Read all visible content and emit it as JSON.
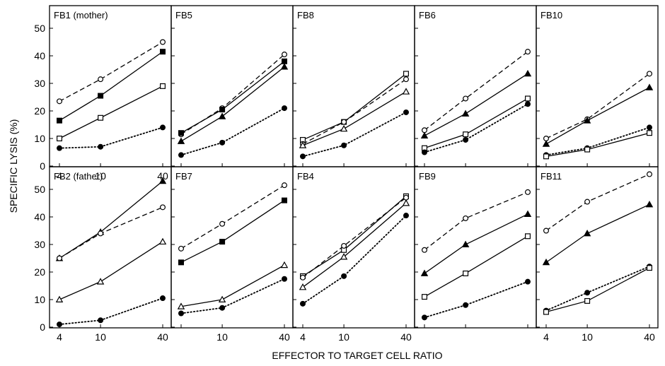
{
  "figure": {
    "ylabel": "SPECIFIC LYSIS (%)",
    "xlabel": "EFFECTOR TO TARGET CELL RATIO"
  },
  "chart_data": [
    {
      "type": "line",
      "title": "FB1 (mother)",
      "x": [
        4,
        10,
        40
      ],
      "xscale": "log",
      "ylim": [
        0,
        55
      ],
      "yticks": [
        0,
        10,
        20,
        30,
        40,
        50
      ],
      "xticks": [
        "4",
        "10",
        "40"
      ],
      "series": [
        {
          "marker": "open-circle",
          "style": "dashed",
          "values": [
            23.5,
            31.5,
            45
          ]
        },
        {
          "marker": "filled-square",
          "style": "solid",
          "values": [
            16.5,
            25.5,
            41.5
          ]
        },
        {
          "marker": "open-square",
          "style": "solid",
          "values": [
            10,
            17.5,
            29
          ]
        },
        {
          "marker": "filled-circle",
          "style": "dotted",
          "values": [
            6.5,
            7,
            14
          ]
        }
      ]
    },
    {
      "type": "line",
      "title": "FB5",
      "x": [
        4,
        10,
        40
      ],
      "xscale": "log",
      "ylim": [
        0,
        55
      ],
      "yticks": [],
      "xticks": [],
      "series": [
        {
          "marker": "open-circle",
          "style": "dashed",
          "values": [
            11.5,
            21,
            40.5
          ]
        },
        {
          "marker": "filled-square",
          "style": "solid",
          "values": [
            12,
            20.5,
            38
          ]
        },
        {
          "marker": "filled-triangle",
          "style": "solid",
          "values": [
            9,
            18,
            36
          ]
        },
        {
          "marker": "filled-circle",
          "style": "dotted",
          "values": [
            4,
            8.5,
            21
          ]
        }
      ]
    },
    {
      "type": "line",
      "title": "FB8",
      "x": [
        4,
        10,
        40
      ],
      "xscale": "log",
      "ylim": [
        0,
        55
      ],
      "yticks": [],
      "xticks": [],
      "series": [
        {
          "marker": "open-square",
          "style": "solid",
          "values": [
            9.5,
            16,
            33.5
          ]
        },
        {
          "marker": "open-circle",
          "style": "dashed",
          "values": [
            8,
            16,
            31.5
          ]
        },
        {
          "marker": "open-triangle",
          "style": "solid",
          "values": [
            7.5,
            13.5,
            27
          ]
        },
        {
          "marker": "filled-circle",
          "style": "dotted",
          "values": [
            3.5,
            7.5,
            19.5
          ]
        }
      ]
    },
    {
      "type": "line",
      "title": "FB6",
      "x": [
        4,
        10,
        40
      ],
      "xscale": "log",
      "ylim": [
        0,
        55
      ],
      "yticks": [],
      "xticks": [],
      "series": [
        {
          "marker": "open-circle",
          "style": "dashed",
          "values": [
            13,
            24.5,
            41.5
          ]
        },
        {
          "marker": "filled-triangle",
          "style": "solid",
          "values": [
            11,
            19,
            33.5
          ]
        },
        {
          "marker": "open-square",
          "style": "solid",
          "values": [
            6.5,
            11.5,
            24.5
          ]
        },
        {
          "marker": "filled-circle",
          "style": "dotted",
          "values": [
            5,
            9.5,
            22.5
          ]
        }
      ]
    },
    {
      "type": "line",
      "title": "FB10",
      "x": [
        4,
        10,
        40
      ],
      "xscale": "log",
      "ylim": [
        0,
        55
      ],
      "yticks": [],
      "xticks": [],
      "series": [
        {
          "marker": "open-circle",
          "style": "dashed",
          "values": [
            10,
            17,
            33.5
          ]
        },
        {
          "marker": "filled-triangle",
          "style": "solid",
          "values": [
            8,
            16.5,
            28.5
          ]
        },
        {
          "marker": "filled-circle",
          "style": "dotted",
          "values": [
            4,
            6.5,
            14
          ]
        },
        {
          "marker": "open-square",
          "style": "solid",
          "values": [
            3.5,
            6,
            12
          ]
        }
      ]
    },
    {
      "type": "line",
      "title": "FB2 (father)",
      "x": [
        4,
        10,
        40
      ],
      "xscale": "log",
      "ylim": [
        0,
        55
      ],
      "yticks": [
        0,
        10,
        20,
        30,
        40,
        50
      ],
      "xticks": [
        "4",
        "10",
        "40"
      ],
      "series": [
        {
          "marker": "filled-triangle",
          "style": "solid",
          "values": [
            25,
            34.5,
            53
          ]
        },
        {
          "marker": "open-circle",
          "style": "dashed",
          "values": [
            25,
            34,
            43.5
          ]
        },
        {
          "marker": "open-triangle",
          "style": "solid",
          "values": [
            10,
            16.5,
            31
          ]
        },
        {
          "marker": "filled-circle",
          "style": "dotted",
          "values": [
            1,
            2.5,
            10.5
          ]
        }
      ]
    },
    {
      "type": "line",
      "title": "FB7",
      "x": [
        4,
        10,
        40
      ],
      "xscale": "log",
      "ylim": [
        0,
        55
      ],
      "yticks": [],
      "xticks": [
        "10",
        "40"
      ],
      "series": [
        {
          "marker": "open-circle",
          "style": "dashed",
          "values": [
            28.5,
            37.5,
            51.5
          ]
        },
        {
          "marker": "filled-square",
          "style": "solid",
          "values": [
            23.5,
            31,
            46
          ]
        },
        {
          "marker": "open-triangle",
          "style": "solid",
          "values": [
            7.5,
            10,
            22.5
          ]
        },
        {
          "marker": "filled-circle",
          "style": "dotted",
          "values": [
            5,
            7,
            17.5
          ]
        }
      ]
    },
    {
      "type": "line",
      "title": "FB4",
      "x": [
        4,
        10,
        40
      ],
      "xscale": "log",
      "ylim": [
        0,
        55
      ],
      "yticks": [],
      "xticks": [
        "4",
        "10",
        "40"
      ],
      "series": [
        {
          "marker": "open-square",
          "style": "solid",
          "values": [
            18.5,
            28,
            47.5
          ]
        },
        {
          "marker": "open-circle",
          "style": "dashed",
          "values": [
            18,
            29.5,
            47
          ]
        },
        {
          "marker": "open-triangle",
          "style": "solid",
          "values": [
            14.5,
            25.5,
            45
          ]
        },
        {
          "marker": "filled-circle",
          "style": "dotted",
          "values": [
            8.5,
            18.5,
            40.5
          ]
        }
      ]
    },
    {
      "type": "line",
      "title": "FB9",
      "x": [
        4,
        10,
        40
      ],
      "xscale": "log",
      "ylim": [
        0,
        55
      ],
      "yticks": [],
      "xticks": [],
      "series": [
        {
          "marker": "open-circle",
          "style": "dashed",
          "values": [
            28,
            39.5,
            49
          ]
        },
        {
          "marker": "filled-triangle",
          "style": "solid",
          "values": [
            19.5,
            30,
            41
          ]
        },
        {
          "marker": "open-square",
          "style": "solid",
          "values": [
            11,
            19.5,
            33
          ]
        },
        {
          "marker": "filled-circle",
          "style": "dotted",
          "values": [
            3.5,
            8,
            16.5
          ]
        }
      ]
    },
    {
      "type": "line",
      "title": "FB11",
      "x": [
        4,
        10,
        40
      ],
      "xscale": "log",
      "ylim": [
        0,
        55
      ],
      "yticks": [],
      "xticks": [
        "4",
        "10",
        "40"
      ],
      "series": [
        {
          "marker": "open-circle",
          "style": "dashed",
          "values": [
            35,
            45.5,
            55.5
          ]
        },
        {
          "marker": "filled-triangle",
          "style": "solid",
          "values": [
            23.5,
            34,
            44.5
          ]
        },
        {
          "marker": "filled-circle",
          "style": "dotted",
          "values": [
            6,
            12.5,
            22
          ]
        },
        {
          "marker": "open-square",
          "style": "solid",
          "values": [
            5.5,
            9.5,
            21.5
          ]
        }
      ]
    }
  ]
}
